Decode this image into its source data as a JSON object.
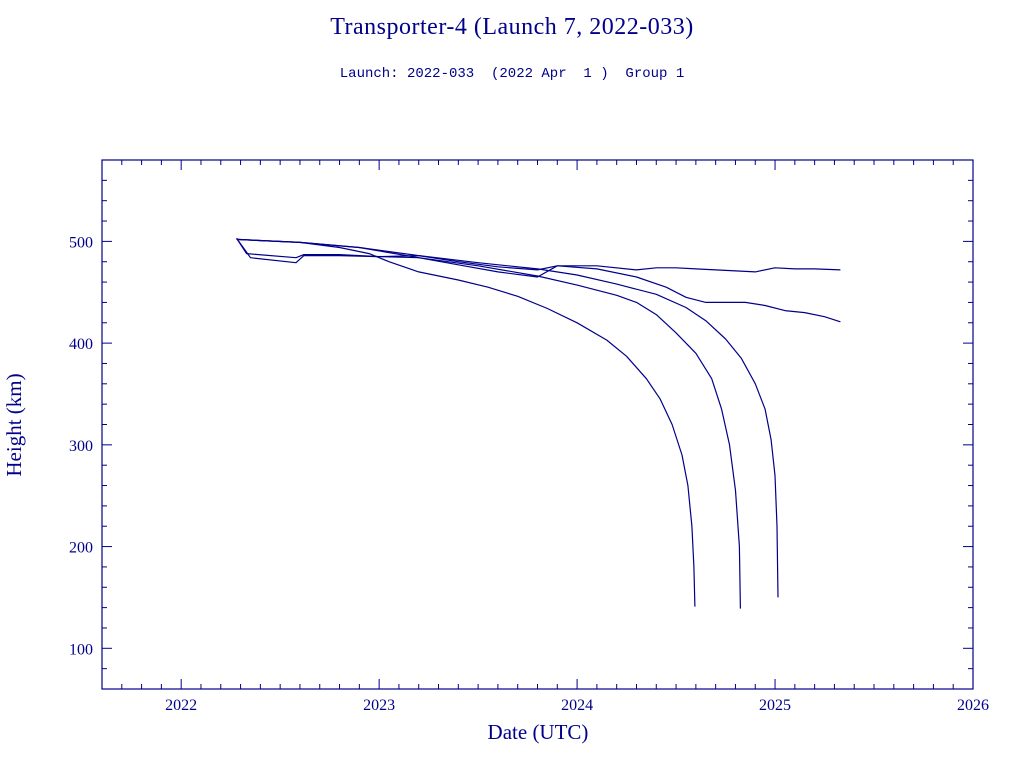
{
  "header": {
    "title": "Transporter-4 (Launch 7, 2022-033)",
    "subtitle": "Launch: 2022-033  (2022 Apr  1 )  Group 1"
  },
  "colors": {
    "ink": "#00008b",
    "background": "#ffffff"
  },
  "chart_data": {
    "type": "line",
    "title": "Transporter-4 (Launch 7, 2022-033)",
    "subtitle": "Launch: 2022-033  (2022 Apr  1 )  Group 1",
    "xlabel": "Date (UTC)",
    "ylabel": "Height (km)",
    "xlim": [
      2021.6,
      2026.0
    ],
    "ylim": [
      60,
      580
    ],
    "x_ticks": [
      2022,
      2023,
      2024,
      2025,
      2026
    ],
    "x_tick_labels": [
      "2022",
      "2023",
      "2024",
      "2025",
      "2026"
    ],
    "y_ticks": [
      100,
      200,
      300,
      400,
      500
    ],
    "y_tick_labels": [
      "100",
      "200",
      "300",
      "400",
      "500"
    ],
    "grid": false,
    "series": [
      {
        "x": [
          2022.28,
          2022.6,
          2022.8,
          2022.95,
          2023.05,
          2023.2,
          2023.4,
          2023.55,
          2023.7,
          2023.85,
          2024.0,
          2024.15,
          2024.25,
          2024.35,
          2024.42,
          2024.48,
          2024.53,
          2024.56,
          2024.58,
          2024.59,
          2024.595
        ],
        "y": [
          502,
          499,
          494,
          488,
          480,
          470,
          462,
          455,
          446,
          434,
          420,
          403,
          387,
          365,
          345,
          320,
          290,
          260,
          220,
          180,
          141
        ]
      },
      {
        "x": [
          2022.28,
          2022.6,
          2022.9,
          2023.2,
          2023.5,
          2023.8,
          2024.0,
          2024.2,
          2024.3,
          2024.4,
          2024.5,
          2024.6,
          2024.68,
          2024.73,
          2024.77,
          2024.8,
          2024.82,
          2024.825
        ],
        "y": [
          502,
          499,
          494,
          484,
          476,
          466,
          457,
          447,
          440,
          428,
          410,
          390,
          365,
          335,
          300,
          255,
          200,
          139
        ]
      },
      {
        "x": [
          2022.28,
          2022.6,
          2022.9,
          2023.2,
          2023.5,
          2023.8,
          2024.0,
          2024.2,
          2024.4,
          2024.55,
          2024.65,
          2024.75,
          2024.83,
          2024.9,
          2024.95,
          2024.98,
          2025.0,
          2025.01,
          2025.015
        ],
        "y": [
          502,
          499,
          494,
          486,
          479,
          473,
          467,
          458,
          448,
          435,
          422,
          404,
          385,
          360,
          335,
          305,
          270,
          220,
          150
        ]
      },
      {
        "x": [
          2022.28,
          2022.35,
          2022.58,
          2022.62,
          2022.8,
          2023.0,
          2023.2,
          2023.4,
          2023.6,
          2023.8,
          2023.9,
          2024.1,
          2024.3,
          2024.4,
          2024.5,
          2024.6,
          2024.7,
          2024.8,
          2024.9,
          2025.0,
          2025.1,
          2025.2,
          2025.33
        ],
        "y": [
          503,
          484,
          479,
          486,
          486,
          485,
          486,
          480,
          475,
          472,
          476,
          476,
          472,
          474,
          474,
          473,
          472,
          471,
          470,
          474,
          473,
          473,
          472
        ]
      },
      {
        "x": [
          2022.28,
          2022.33,
          2022.58,
          2022.62,
          2022.8,
          2023.0,
          2023.2,
          2023.4,
          2023.6,
          2023.8,
          2023.9,
          2024.1,
          2024.3,
          2024.45,
          2024.55,
          2024.65,
          2024.75,
          2024.85,
          2024.95,
          2025.05,
          2025.15,
          2025.25,
          2025.33
        ],
        "y": [
          503,
          488,
          484,
          487,
          487,
          485,
          484,
          477,
          470,
          465,
          476,
          473,
          465,
          455,
          445,
          440,
          440,
          440,
          437,
          432,
          430,
          426,
          421
        ]
      }
    ]
  }
}
